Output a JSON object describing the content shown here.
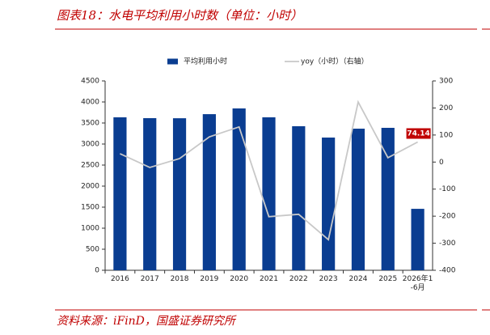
{
  "title": "图表18：水电平均利用小时数（单位：小时）",
  "source": "资料来源：iFinD，国盛证券研究所",
  "chart_data": {
    "type": "bar",
    "categories": [
      "2016",
      "2017",
      "2018",
      "2019",
      "2020",
      "2021",
      "2022",
      "2023",
      "2024",
      "2025",
      "2026年1-6月"
    ],
    "series": [
      {
        "name": "平均利用小时",
        "type": "bar",
        "color": "#0a3d91",
        "values": [
          3635,
          3615,
          3613,
          3710,
          3846,
          3635,
          3423,
          3154,
          3365,
          3385,
          1460
        ]
      },
      {
        "name": "yoy（小时）（右轴）",
        "type": "line",
        "axis": "y2",
        "color": "#c8c8c8",
        "values": [
          31,
          -20,
          13,
          93,
          130,
          -202,
          -193,
          -287,
          222,
          16,
          74.14
        ],
        "value_labels": [
          null,
          null,
          null,
          null,
          null,
          null,
          null,
          null,
          null,
          null,
          "74.14"
        ]
      }
    ],
    "ylim": [
      0,
      4500
    ],
    "yticks": [
      0,
      500,
      1000,
      1500,
      2000,
      2500,
      3000,
      3500,
      4000,
      4500
    ],
    "y2lim": [
      -400,
      300
    ],
    "y2ticks": [
      -400,
      -300,
      -200,
      -100,
      0,
      100,
      200,
      300
    ],
    "grid": false
  }
}
